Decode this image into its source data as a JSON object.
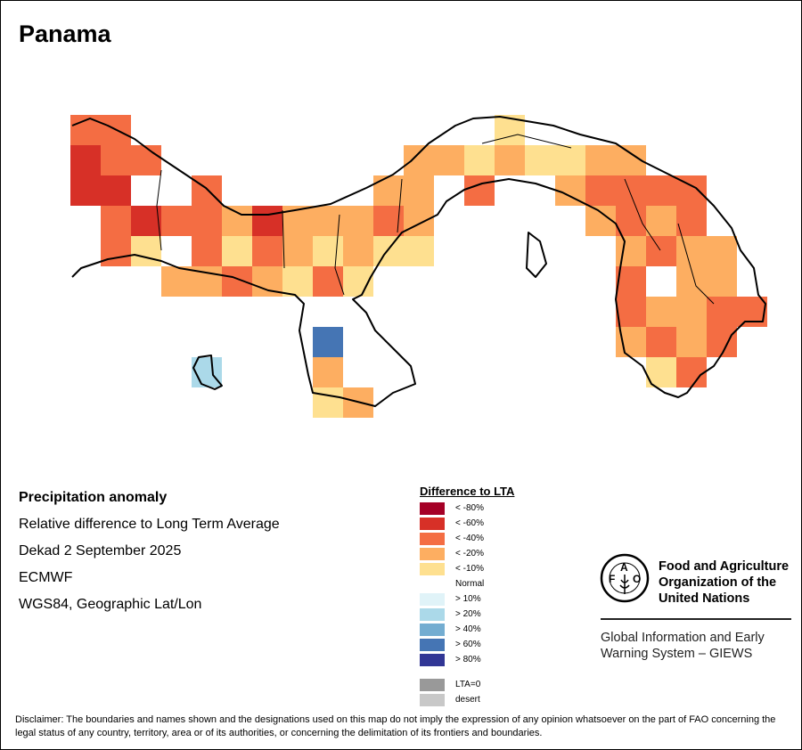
{
  "title": "Panama",
  "info": {
    "heading": "Precipitation anomaly",
    "line1": "Relative difference to Long Term Average",
    "line2": "Dekad 2 September 2025",
    "line3": "ECMWF",
    "line4": "WGS84, Geographic Lat/Lon"
  },
  "legend": {
    "title": "Difference to LTA",
    "items": [
      {
        "code": "a",
        "label": "< -80%",
        "color": "#a50026"
      },
      {
        "code": "b",
        "label": "< -60%",
        "color": "#d73027"
      },
      {
        "code": "c",
        "label": "< -40%",
        "color": "#f46d43"
      },
      {
        "code": "d",
        "label": "< -20%",
        "color": "#fdae61"
      },
      {
        "code": "e",
        "label": "< -10%",
        "color": "#fee090"
      },
      {
        "code": "n",
        "label": "Normal",
        "color": "#ffffff"
      },
      {
        "code": "g",
        "label": "> 10%",
        "color": "#e0f3f8"
      },
      {
        "code": "h",
        "label": "> 20%",
        "color": "#abd9e9"
      },
      {
        "code": "i",
        "label": "> 40%",
        "color": "#74add1"
      },
      {
        "code": "j",
        "label": "> 60%",
        "color": "#4575b4"
      },
      {
        "code": "k",
        "label": "> 80%",
        "color": "#313695"
      },
      {
        "code": "z",
        "label": "LTA=0",
        "color": "#999999"
      },
      {
        "code": "s",
        "label": "desert",
        "color": "#c8c8c8"
      }
    ]
  },
  "anomaly_grid": [
    "cc............e........",
    "bcc........ddedeedd....",
    "bb..c.....dd.c..dcccc..",
    ".cbccdbdddcd.....dcdc..",
    ".ce.cecdedee......dcdd.",
    "...ddcdece........c.dd.",
    "..................cddcc",
    "........j.........dcdc.",
    "....h...d..........ec..",
    "........ed............."
  ],
  "logo": {
    "org_line1": "Food and Agriculture",
    "org_line2": "Organization of the",
    "org_line3": "United Nations",
    "emblem_text": "FAO FIAT PANIS"
  },
  "giews": {
    "line1": "Global Information and Early",
    "line2": "Warning System – GIEWS"
  },
  "disclaimer": "Disclaimer: The boundaries and names shown and the designations used on this map do not imply the expression of any opinion whatsoever on the part of FAO concerning the legal status of any country, territory, area or of its authorities, or concerning the delimitation of its frontiers and boundaries."
}
